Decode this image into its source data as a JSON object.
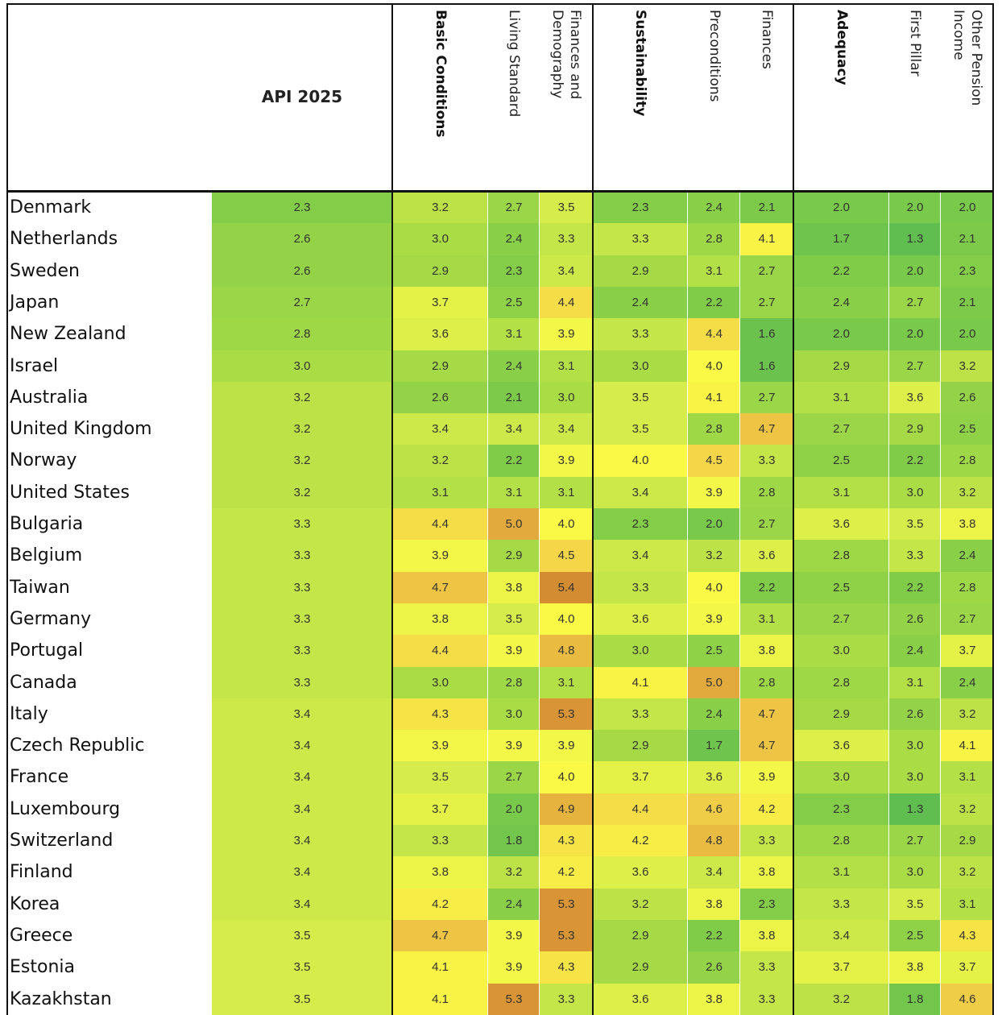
{
  "chart_data": {
    "type": "heatmap",
    "title": "",
    "api_header": "API 2025",
    "groups": [
      {
        "name": "Basic Conditions",
        "subs": [
          "Living Standard",
          "Finances and\nDemography"
        ]
      },
      {
        "name": "Sustainability",
        "subs": [
          "Preconditions",
          "Finances"
        ]
      },
      {
        "name": "Adequacy",
        "subs": [
          "First Pillar",
          "Other Pension\nIncome"
        ]
      }
    ],
    "columns": [
      "API 2025",
      "Basic Conditions",
      "Living Standard",
      "Finances and Demography",
      "Sustainability",
      "Preconditions",
      "Finances",
      "Adequacy",
      "First Pillar",
      "Other Pension Income"
    ],
    "rows": [
      {
        "country": "Denmark",
        "values": [
          "2.3",
          "3.2",
          "2.7",
          "3.5",
          "2.3",
          "2.4",
          "2.1",
          "2.0",
          "2.0",
          "2.0"
        ]
      },
      {
        "country": "Netherlands",
        "values": [
          "2.6",
          "3.0",
          "2.4",
          "3.3",
          "3.3",
          "2.8",
          "4.1",
          "1.7",
          "1.3",
          "2.1"
        ]
      },
      {
        "country": "Sweden",
        "values": [
          "2.6",
          "2.9",
          "2.3",
          "3.4",
          "2.9",
          "3.1",
          "2.7",
          "2.2",
          "2.0",
          "2.3"
        ]
      },
      {
        "country": "Japan",
        "values": [
          "2.7",
          "3.7",
          "2.5",
          "4.4",
          "2.4",
          "2.2",
          "2.7",
          "2.4",
          "2.7",
          "2.1"
        ]
      },
      {
        "country": "New Zealand",
        "values": [
          "2.8",
          "3.6",
          "3.1",
          "3.9",
          "3.3",
          "4.4",
          "1.6",
          "2.0",
          "2.0",
          "2.0"
        ]
      },
      {
        "country": "Israel",
        "values": [
          "3.0",
          "2.9",
          "2.4",
          "3.1",
          "3.0",
          "4.0",
          "1.6",
          "2.9",
          "2.7",
          "3.2"
        ]
      },
      {
        "country": "Australia",
        "values": [
          "3.2",
          "2.6",
          "2.1",
          "3.0",
          "3.5",
          "4.1",
          "2.7",
          "3.1",
          "3.6",
          "2.6"
        ]
      },
      {
        "country": "United Kingdom",
        "values": [
          "3.2",
          "3.4",
          "3.4",
          "3.4",
          "3.5",
          "2.8",
          "4.7",
          "2.7",
          "2.9",
          "2.5"
        ]
      },
      {
        "country": "Norway",
        "values": [
          "3.2",
          "3.2",
          "2.2",
          "3.9",
          "4.0",
          "4.5",
          "3.3",
          "2.5",
          "2.2",
          "2.8"
        ]
      },
      {
        "country": "United States",
        "values": [
          "3.2",
          "3.1",
          "3.1",
          "3.1",
          "3.4",
          "3.9",
          "2.8",
          "3.1",
          "3.0",
          "3.2"
        ]
      },
      {
        "country": "Bulgaria",
        "values": [
          "3.3",
          "4.4",
          "5.0",
          "4.0",
          "2.3",
          "2.0",
          "2.7",
          "3.6",
          "3.5",
          "3.8"
        ]
      },
      {
        "country": "Belgium",
        "values": [
          "3.3",
          "3.9",
          "2.9",
          "4.5",
          "3.4",
          "3.2",
          "3.6",
          "2.8",
          "3.3",
          "2.4"
        ]
      },
      {
        "country": "Taiwan",
        "values": [
          "3.3",
          "4.7",
          "3.8",
          "5.4",
          "3.3",
          "4.0",
          "2.2",
          "2.5",
          "2.2",
          "2.8"
        ]
      },
      {
        "country": "Germany",
        "values": [
          "3.3",
          "3.8",
          "3.5",
          "4.0",
          "3.6",
          "3.9",
          "3.1",
          "2.7",
          "2.6",
          "2.7"
        ]
      },
      {
        "country": "Portugal",
        "values": [
          "3.3",
          "4.4",
          "3.9",
          "4.8",
          "3.0",
          "2.5",
          "3.8",
          "3.0",
          "2.4",
          "3.7"
        ]
      },
      {
        "country": "Canada",
        "values": [
          "3.3",
          "3.0",
          "2.8",
          "3.1",
          "4.1",
          "5.0",
          "2.8",
          "2.8",
          "3.1",
          "2.4"
        ]
      },
      {
        "country": "Italy",
        "values": [
          "3.4",
          "4.3",
          "3.0",
          "5.3",
          "3.3",
          "2.4",
          "4.7",
          "2.9",
          "2.6",
          "3.2"
        ]
      },
      {
        "country": "Czech Republic",
        "values": [
          "3.4",
          "3.9",
          "3.9",
          "3.9",
          "2.9",
          "1.7",
          "4.7",
          "3.6",
          "3.0",
          "4.1"
        ]
      },
      {
        "country": "France",
        "values": [
          "3.4",
          "3.5",
          "2.7",
          "4.0",
          "3.7",
          "3.6",
          "3.9",
          "3.0",
          "3.0",
          "3.1"
        ]
      },
      {
        "country": "Luxembourg",
        "values": [
          "3.4",
          "3.7",
          "2.0",
          "4.9",
          "4.4",
          "4.6",
          "4.2",
          "2.3",
          "1.3",
          "3.2"
        ]
      },
      {
        "country": "Switzerland",
        "values": [
          "3.4",
          "3.3",
          "1.8",
          "4.3",
          "4.2",
          "4.8",
          "3.3",
          "2.8",
          "2.7",
          "2.9"
        ]
      },
      {
        "country": "Finland",
        "values": [
          "3.4",
          "3.8",
          "3.2",
          "4.2",
          "3.6",
          "3.4",
          "3.8",
          "3.1",
          "3.0",
          "3.2"
        ]
      },
      {
        "country": "Korea",
        "values": [
          "3.4",
          "4.2",
          "2.4",
          "5.3",
          "3.2",
          "3.8",
          "2.3",
          "3.3",
          "3.5",
          "3.1"
        ]
      },
      {
        "country": "Greece",
        "values": [
          "3.5",
          "4.7",
          "3.9",
          "5.3",
          "2.9",
          "2.2",
          "3.8",
          "3.4",
          "2.5",
          "4.3"
        ]
      },
      {
        "country": "Estonia",
        "values": [
          "3.5",
          "4.1",
          "3.9",
          "4.3",
          "2.9",
          "2.6",
          "3.3",
          "3.7",
          "3.8",
          "3.7"
        ]
      },
      {
        "country": "Kazakhstan",
        "values": [
          "3.5",
          "4.1",
          "5.3",
          "3.3",
          "3.6",
          "3.8",
          "3.3",
          "3.2",
          "1.8",
          "4.6"
        ]
      }
    ]
  }
}
